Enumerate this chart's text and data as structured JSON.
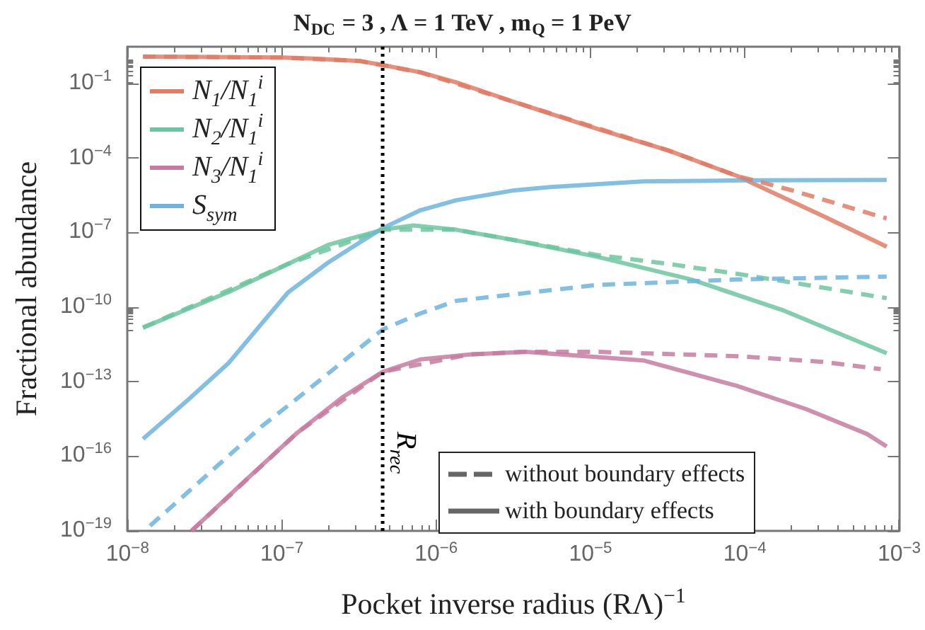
{
  "chart_data": {
    "type": "line",
    "title": "N$_{DC}$ = 3 , Λ = 1 TeV , m$_{Q}$ = 1 PeV",
    "xlabel": "Pocket inverse radius (RΛ)$^{−1}$",
    "ylabel": "Fractional abundance",
    "log": "xy",
    "legend": "top left",
    "marker": "none",
    "xlim": [
      1e-08,
      0.001
    ],
    "ylim": [
      1e-19,
      3
    ],
    "xticks": [
      {
        "value": 1e-08,
        "label": "10$^{−8}$"
      },
      {
        "value": 1e-07,
        "label": "10$^{−7}$"
      },
      {
        "value": 1e-06,
        "label": "10$^{−6}$"
      },
      {
        "value": 1e-05,
        "label": "10$^{−5}$"
      },
      {
        "value": 0.0001,
        "label": "10$^{−4}$"
      },
      {
        "value": 0.001,
        "label": "10$^{−3}$"
      }
    ],
    "yticks": [
      {
        "value": 1e-19,
        "label": "10$^{−19}$"
      },
      {
        "value": 1e-16,
        "label": "10$^{−16}$"
      },
      {
        "value": 1e-13,
        "label": "10$^{−13}$"
      },
      {
        "value": 1e-10,
        "label": "10$^{−10}$"
      },
      {
        "value": 1e-07,
        "label": "10$^{−7}$"
      },
      {
        "value": 0.0001,
        "label": "10$^{−4}$"
      },
      {
        "value": 0.1,
        "label": "10$^{−1}$"
      }
    ],
    "series": [
      {
        "name": "N$_{1}$/N$_{1}$$^{i}$",
        "color": "#e07b65",
        "line_style": "solid",
        "x": [
          1.26e-08,
          1e-07,
          1.6e-07,
          3.2e-07,
          4.5e-07,
          7.9e-07,
          1.35e-06,
          3.2e-06,
          1.1e-05,
          3.2e-05,
          8.9e-05,
          0.00032,
          0.00083
        ],
        "values": [
          1.2,
          1.1,
          1.0,
          0.8,
          0.55,
          0.28,
          0.11,
          0.018,
          0.0015,
          0.0002,
          1.9e-05,
          4.7e-07,
          2.7e-08
        ]
      },
      {
        "name": "N$_{2}$/N$_{1}$$^{i}$",
        "color": "#6cc5a0",
        "line_style": "solid",
        "x": [
          1.26e-08,
          4.5e-08,
          1.1e-07,
          2e-07,
          4.5e-07,
          7.1e-07,
          1.35e-06,
          3.2e-06,
          1.1e-05,
          4.5e-05,
          0.00018,
          0.00083
        ],
        "values": [
          1.5e-11,
          4e-10,
          5.5e-09,
          3.2e-08,
          1.3e-07,
          1.95e-07,
          1.3e-07,
          5e-08,
          1.07e-08,
          1.3e-09,
          7.2e-11,
          1.4e-12
        ]
      },
      {
        "name": "N$_{3}$/N$_{1}$$^{i}$",
        "color": "#c77ba0",
        "line_style": "solid",
        "x": [
          2.6e-08,
          5.5e-08,
          1.26e-07,
          2.5e-07,
          4.5e-07,
          7.9e-07,
          1.66e-06,
          3.8e-06,
          2.2e-05,
          8.9e-05,
          0.00025,
          0.00062,
          0.00083
        ],
        "values": [
          1e-19,
          7.9e-18,
          8.9e-16,
          2.5e-14,
          2.5e-13,
          7.9e-13,
          1.26e-12,
          1.6e-12,
          7.2e-13,
          6.8e-14,
          7.9e-15,
          7.9e-16,
          2.5e-16
        ]
      },
      {
        "name": "S$_{sym}$",
        "color": "#6cb4de",
        "line_style": "solid",
        "x": [
          1.26e-08,
          2.5e-08,
          4.5e-08,
          7.1e-08,
          1.1e-07,
          2e-07,
          3.2e-07,
          4.5e-07,
          7.9e-07,
          1.35e-06,
          3.2e-06,
          5.5e-06,
          2.2e-05,
          0.0001,
          0.00083
        ],
        "values": [
          5e-16,
          2e-14,
          5.5e-13,
          1.6e-11,
          4e-10,
          6.3e-09,
          4e-08,
          1.5e-07,
          7.9e-07,
          2e-06,
          5e-06,
          6.8e-06,
          1.15e-05,
          1.26e-05,
          1.3e-05
        ]
      },
      {
        "color": "#e07b65",
        "line_style": "dashed",
        "x": [
          1.26e-08,
          1e-07,
          3.2e-07,
          7.9e-07,
          3.2e-06,
          3.2e-05,
          8.9e-05,
          0.0002,
          0.00083
        ],
        "values": [
          1.2,
          1.1,
          0.8,
          0.28,
          0.018,
          0.0002,
          1.9e-05,
          5.1e-06,
          3.7e-07
        ]
      },
      {
        "color": "#6cc5a0",
        "line_style": "dashed",
        "x": [
          1.26e-08,
          1.1e-07,
          4.5e-07,
          1.35e-06,
          1.1e-05,
          3.2e-05,
          8.9e-05,
          0.00025,
          0.00083
        ],
        "values": [
          1.5e-11,
          5.5e-09,
          1.3e-07,
          1.3e-07,
          1.26e-08,
          5.5e-09,
          2.2e-09,
          7.9e-10,
          2.3e-10
        ]
      },
      {
        "color": "#c77ba0",
        "line_style": "dashed",
        "x": [
          2.6e-08,
          1.26e-07,
          4.5e-07,
          1.66e-06,
          3.8e-06,
          1.1e-05,
          8.9e-05,
          0.00032,
          0.00076
        ],
        "values": [
          1e-19,
          8.9e-16,
          2.5e-13,
          1.26e-12,
          1.6e-12,
          1.6e-12,
          1.07e-12,
          6.3e-13,
          3.2e-13
        ]
      },
      {
        "color": "#6cb4de",
        "line_style": "dashed",
        "x": [
          1.4e-08,
          7.4e-08,
          1.3e-07,
          4.5e-07,
          7.9e-07,
          1.35e-06,
          1.1e-05,
          8.9e-05,
          0.00083
        ],
        "values": [
          1.6e-19,
          1.6e-15,
          2.5e-14,
          1.26e-11,
          5.6e-11,
          1.8e-10,
          7.8e-10,
          1.3e-09,
          1.7e-09
        ]
      }
    ],
    "ref_lines": [
      {
        "axis": "x",
        "value": 4.5e-07,
        "label": "R$_{rec}$",
        "color": "#000000",
        "line_style": "dotted"
      }
    ],
    "annotations": [
      "without boundary effects",
      "with boundary effects"
    ]
  }
}
